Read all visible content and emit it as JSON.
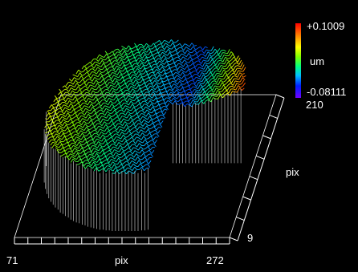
{
  "chart_data": {
    "type": "surface",
    "title": "",
    "xlabel": "pix",
    "ylabel": "pix",
    "zlabel": "um",
    "x_ticks": [
      "71",
      "272"
    ],
    "y_ticks": [
      "9",
      "210"
    ],
    "zlim": [
      -0.08111,
      0.1009
    ],
    "colorbar": {
      "max_label": "+0.1009",
      "unit_label": "um",
      "min_label": "-0.08111",
      "colors": [
        "#ff0000",
        "#ff8000",
        "#ffff00",
        "#80ff00",
        "#00ff80",
        "#00c0ff",
        "#0020ff",
        "#7000ff"
      ]
    },
    "surface": "circular aperture, wireframe, color-mapped height; gradient from yellow (left) through green/blue to red (right), with a cutout at the front right",
    "background": "#000000",
    "grid": false
  }
}
